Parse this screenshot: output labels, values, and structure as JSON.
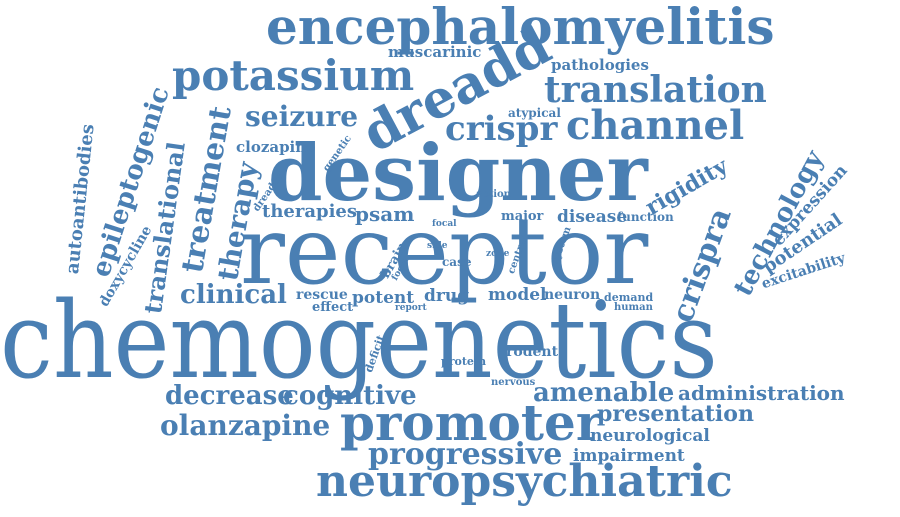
{
  "theme": {
    "word_color": "#4a7fb3",
    "background": "#ffffff"
  },
  "words": [
    "chemogenetics",
    "receptor",
    "designer",
    "neuropsychiatric",
    "promoter",
    "encephalomyelitis",
    "potassium",
    "dreadd",
    "translation",
    "channel",
    "crispr",
    "seizure",
    "treatment",
    "therapy",
    "epileptogenic",
    "translational",
    "autoantibodies",
    "clinical",
    "technology",
    "crispra",
    "rigidity",
    "expression",
    "potential",
    "excitability",
    "progressive",
    "olanzapine",
    "cognitive",
    "decrease",
    "amenable",
    "administration",
    "presentation",
    "neurological",
    "impairment",
    "muscarinic",
    "pathologies",
    "atypical",
    "clozapine",
    "genetic",
    "dreadds",
    "therapies",
    "psam",
    "major",
    "disease",
    "function",
    "action",
    "focal",
    "side",
    "case",
    "zone",
    "central",
    "system",
    "brain",
    "focus",
    "doxycycline",
    "rescue",
    "effect",
    "potent",
    "drug",
    "model",
    "neuron",
    "demand",
    "human",
    "report",
    "deficit",
    "protein",
    "rodent",
    "nervous"
  ]
}
